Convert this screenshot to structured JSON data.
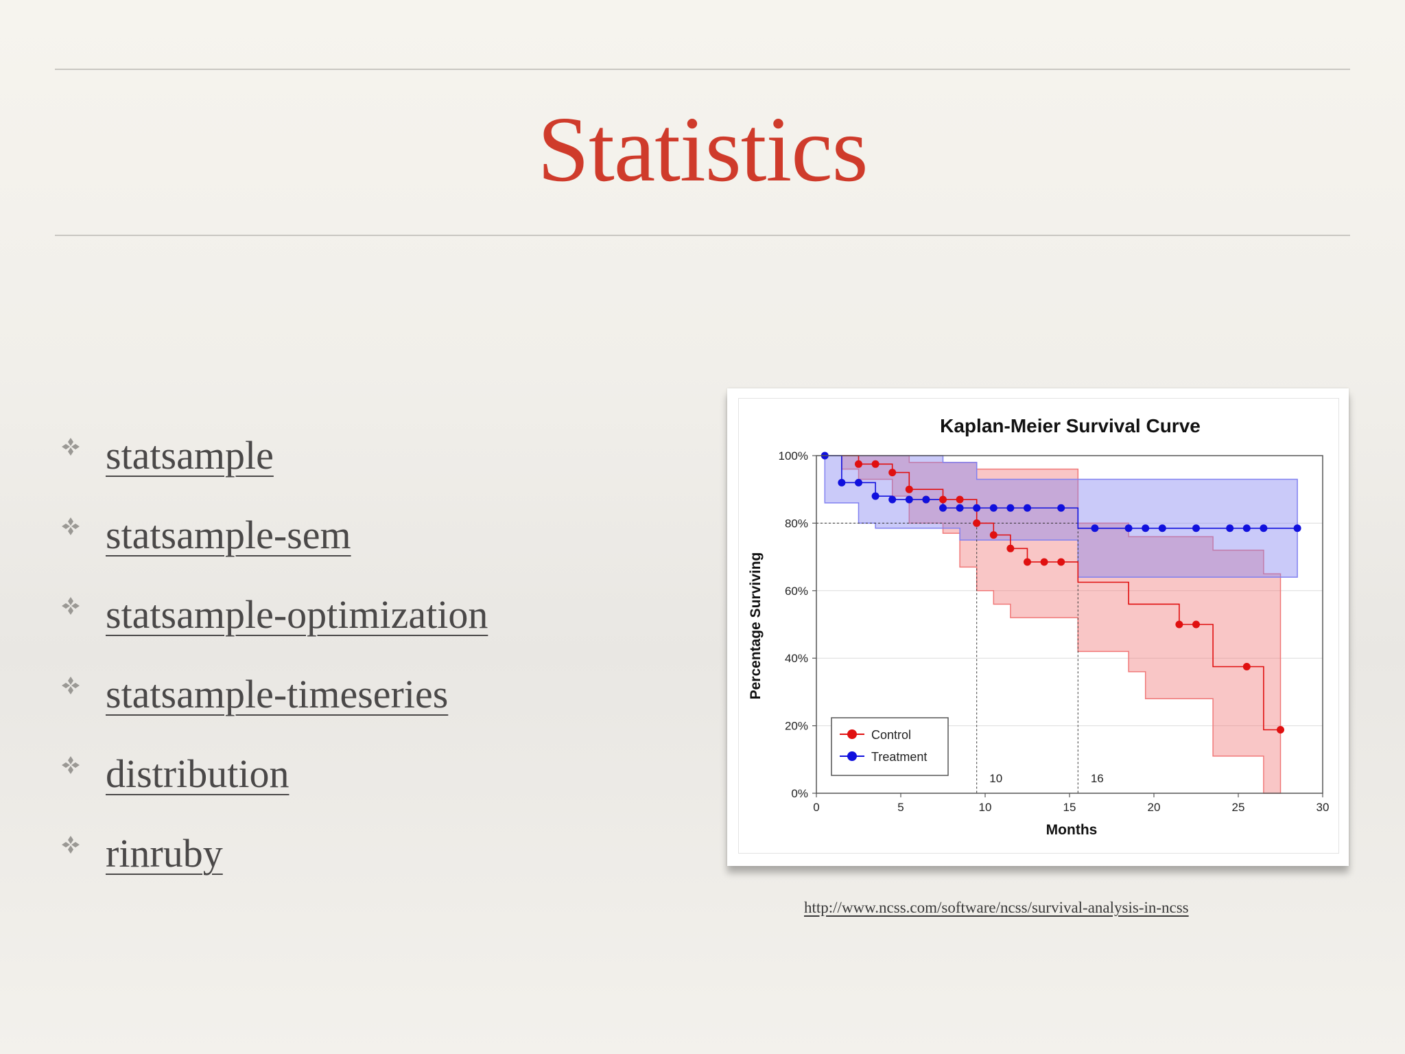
{
  "slide": {
    "title": "Statistics",
    "bullets": [
      {
        "label": "statsample"
      },
      {
        "label": "statsample-sem"
      },
      {
        "label": "statsample-optimization"
      },
      {
        "label": "statsample-timeseries"
      },
      {
        "label": "distribution"
      },
      {
        "label": "rinruby"
      }
    ],
    "source_link": "http://www.ncss.com/software/ncss/survival-analysis-in-ncss",
    "colors": {
      "title": "#cf3b2b",
      "text": "#4a4848",
      "bullet": "#9a9894"
    }
  },
  "chart_data": {
    "type": "line",
    "title": "Kaplan-Meier Survival Curve",
    "xlabel": "Months",
    "ylabel": "Percentage Surviving",
    "xlim": [
      0,
      30
    ],
    "ylim": [
      0,
      100
    ],
    "x_ticks": [
      "0",
      "5",
      "10",
      "15",
      "20",
      "25",
      "30"
    ],
    "y_ticks": [
      "0%",
      "20%",
      "40%",
      "60%",
      "80%",
      "100%"
    ],
    "grid": true,
    "legend_position": "bottom-left",
    "reference_line": {
      "y": 80,
      "x_markers": [
        {
          "x": 9.5,
          "label": "10"
        },
        {
          "x": 15.5,
          "label": "16"
        }
      ]
    },
    "series": [
      {
        "name": "Control",
        "color": "#e01010",
        "band_color": "#f07878",
        "steps": [
          [
            1.5,
            100
          ],
          [
            2.5,
            97.5
          ],
          [
            4.5,
            95
          ],
          [
            5.5,
            90
          ],
          [
            7.5,
            87
          ],
          [
            9.5,
            80
          ],
          [
            10.5,
            76.5
          ],
          [
            11.5,
            72.5
          ],
          [
            12.5,
            68.5
          ],
          [
            15.5,
            62.5
          ],
          [
            18.5,
            56
          ],
          [
            21.5,
            50
          ],
          [
            23.5,
            37.5
          ],
          [
            26.5,
            18.8
          ],
          [
            27.5,
            18.8
          ]
        ],
        "upper": [
          [
            1.5,
            100
          ],
          [
            5.5,
            98
          ],
          [
            8.5,
            98
          ],
          [
            9.5,
            96
          ],
          [
            15.5,
            80
          ],
          [
            18.5,
            76
          ],
          [
            23.5,
            72
          ],
          [
            26.5,
            65
          ],
          [
            27.5,
            48
          ]
        ],
        "lower": [
          [
            1.5,
            96
          ],
          [
            2.5,
            93
          ],
          [
            4.5,
            88
          ],
          [
            5.5,
            80
          ],
          [
            7.5,
            77
          ],
          [
            8.5,
            67
          ],
          [
            9.5,
            60
          ],
          [
            10.5,
            56
          ],
          [
            11.5,
            52
          ],
          [
            15.5,
            42
          ],
          [
            18.5,
            36
          ],
          [
            19.5,
            28
          ],
          [
            23.5,
            11
          ],
          [
            26.5,
            0
          ],
          [
            27.5,
            0
          ]
        ],
        "points": [
          [
            2.5,
            97.5
          ],
          [
            3.5,
            97.5
          ],
          [
            4.5,
            95
          ],
          [
            5.5,
            90
          ],
          [
            6.5,
            87
          ],
          [
            7.5,
            87
          ],
          [
            8.5,
            87
          ],
          [
            9.5,
            80
          ],
          [
            10.5,
            76.5
          ],
          [
            11.5,
            72.5
          ],
          [
            12.5,
            68.5
          ],
          [
            13.5,
            68.5
          ],
          [
            14.5,
            68.5
          ],
          [
            21.5,
            50
          ],
          [
            22.5,
            50
          ],
          [
            25.5,
            37.5
          ],
          [
            27.5,
            18.8
          ]
        ]
      },
      {
        "name": "Treatment",
        "color": "#1010dd",
        "band_color": "#8080f0",
        "steps": [
          [
            0.5,
            100
          ],
          [
            1.5,
            92
          ],
          [
            3.5,
            88
          ],
          [
            4.5,
            87
          ],
          [
            7.5,
            84.5
          ],
          [
            15.5,
            78.5
          ],
          [
            28.5,
            78.5
          ]
        ],
        "upper": [
          [
            0.5,
            100
          ],
          [
            7.5,
            98
          ],
          [
            9.5,
            93
          ],
          [
            28.5,
            93
          ]
        ],
        "lower": [
          [
            0.5,
            86
          ],
          [
            2.5,
            80
          ],
          [
            3.5,
            78.5
          ],
          [
            8.5,
            75
          ],
          [
            15.5,
            64
          ],
          [
            28.5,
            64
          ]
        ],
        "points": [
          [
            0.5,
            100
          ],
          [
            1.5,
            92
          ],
          [
            2.5,
            92
          ],
          [
            3.5,
            88
          ],
          [
            4.5,
            87
          ],
          [
            5.5,
            87
          ],
          [
            6.5,
            87
          ],
          [
            7.5,
            84.5
          ],
          [
            8.5,
            84.5
          ],
          [
            9.5,
            84.5
          ],
          [
            10.5,
            84.5
          ],
          [
            11.5,
            84.5
          ],
          [
            12.5,
            84.5
          ],
          [
            14.5,
            84.5
          ],
          [
            16.5,
            78.5
          ],
          [
            18.5,
            78.5
          ],
          [
            19.5,
            78.5
          ],
          [
            20.5,
            78.5
          ],
          [
            22.5,
            78.5
          ],
          [
            24.5,
            78.5
          ],
          [
            25.5,
            78.5
          ],
          [
            26.5,
            78.5
          ],
          [
            28.5,
            78.5
          ]
        ]
      }
    ]
  }
}
